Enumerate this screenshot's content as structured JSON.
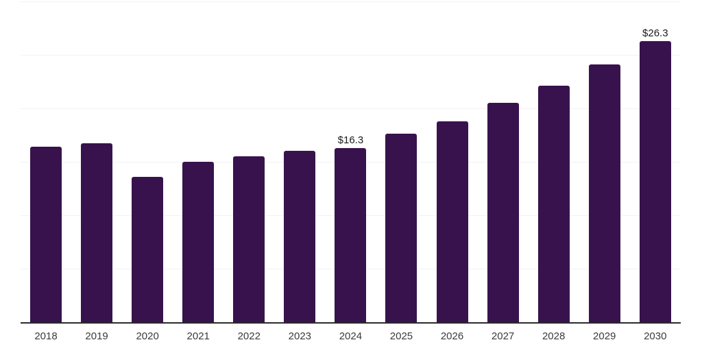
{
  "chart_data": {
    "type": "bar",
    "title": "",
    "xlabel": "",
    "ylabel": "",
    "categories": [
      "2018",
      "2019",
      "2020",
      "2021",
      "2022",
      "2023",
      "2024",
      "2025",
      "2026",
      "2027",
      "2028",
      "2029",
      "2030"
    ],
    "values": [
      16.4,
      16.7,
      13.6,
      15.0,
      15.5,
      16.0,
      16.3,
      17.6,
      18.8,
      20.5,
      22.1,
      24.1,
      26.3
    ],
    "annotations": [
      {
        "category": "2024",
        "label": "$16.3"
      },
      {
        "category": "2030",
        "label": "$26.3"
      }
    ],
    "ylim": [
      0,
      30
    ],
    "gridline_values": [
      5,
      10,
      15,
      20,
      25,
      30
    ],
    "grid": "horizontal-only",
    "legend": "none",
    "y_axis_labels_visible": false
  },
  "colors": {
    "bar": "#38124D",
    "gridline": "#f2f2f2",
    "axis_line": "#2b2b2b",
    "tick_label": "#3a3a3a",
    "value_label": "#1a1a1a",
    "background": "#ffffff"
  }
}
